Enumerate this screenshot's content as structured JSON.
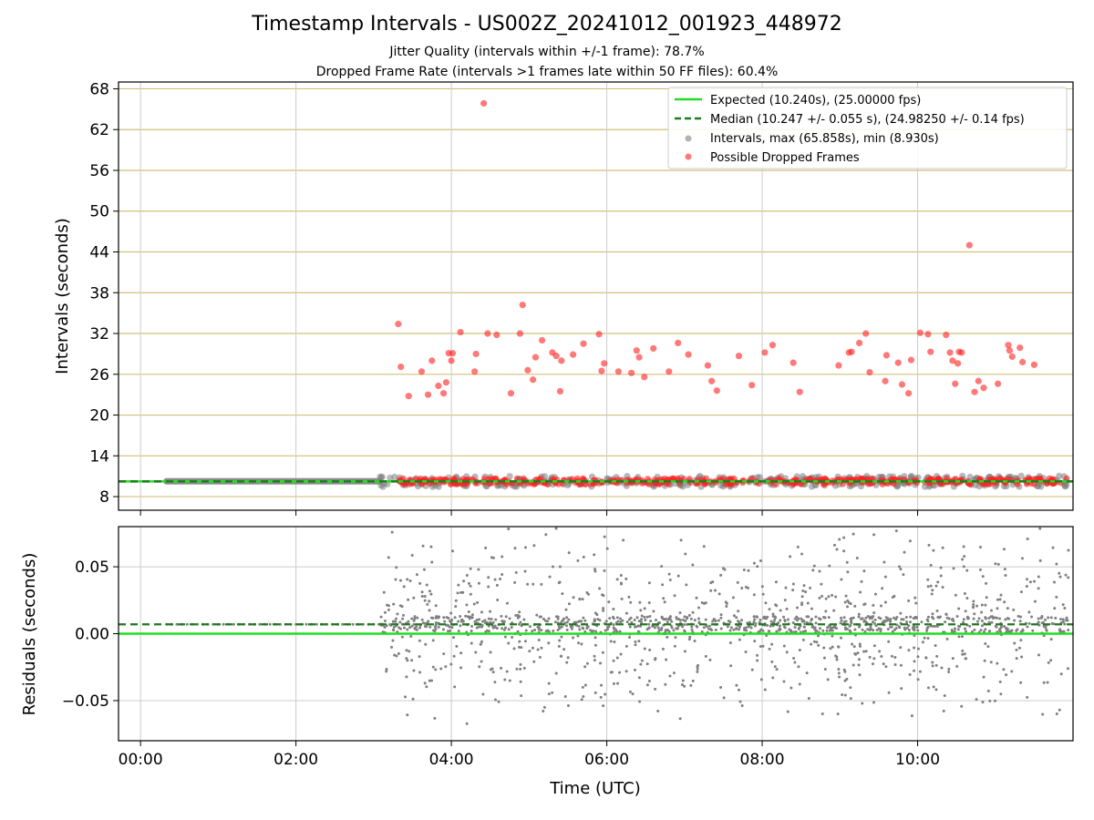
{
  "header": {
    "title": "Timestamp Intervals - US002Z_20241012_001923_448972",
    "subtitle_1": "Jitter Quality (intervals within +/-1 frame): 78.7%",
    "subtitle_2": "Dropped Frame Rate (intervals >1 frames late within 50 FF files): 60.4%"
  },
  "colors": {
    "expected": "#22dd22",
    "median": "#1f7a1f",
    "intervals": "#808080",
    "dropped": "#ff2020",
    "hgrid_top": "#d2c07a",
    "grid": "#cccccc"
  },
  "chart_data": [
    {
      "type": "scatter",
      "panel": "top",
      "ylabel": "Intervals (seconds)",
      "xlim": [
        "-00:17",
        "12:00"
      ],
      "ylim": [
        6,
        69
      ],
      "yticks": [
        "8",
        "14",
        "20",
        "26",
        "32",
        "38",
        "44",
        "50",
        "56",
        "62",
        "68"
      ],
      "horizontal_grid": true,
      "vertical_grid": true,
      "legend": {
        "placement": "top-right",
        "entries": [
          {
            "label": "Expected (10.240s), (25.00000 fps)",
            "kind": "line",
            "color": "#22dd22"
          },
          {
            "label": "Median (10.247 +/- 0.055 s), (24.98250 +/- 0.14 fps)",
            "kind": "dashed",
            "color": "#1f7a1f"
          },
          {
            "label": "Intervals, max (65.858s), min (8.930s)",
            "kind": "marker",
            "color": "#808080"
          },
          {
            "label": "Possible Dropped Frames",
            "kind": "marker",
            "color": "#ff2020"
          }
        ]
      },
      "lines": {
        "expected": 10.24,
        "median": 10.247
      },
      "intervals_band": {
        "x_start": "00:20",
        "x_end": "11:57",
        "y_center": 10.25
      },
      "dropped_frames": [
        {
          "x": "03:19",
          "y": 33.4
        },
        {
          "x": "03:21",
          "y": 27.1
        },
        {
          "x": "03:27",
          "y": 22.8
        },
        {
          "x": "03:37",
          "y": 26.4
        },
        {
          "x": "03:42",
          "y": 23.0
        },
        {
          "x": "03:45",
          "y": 28.0
        },
        {
          "x": "03:50",
          "y": 24.3
        },
        {
          "x": "03:54",
          "y": 23.2
        },
        {
          "x": "03:56",
          "y": 24.8
        },
        {
          "x": "03:58",
          "y": 29.1
        },
        {
          "x": "04:00",
          "y": 28.0
        },
        {
          "x": "04:01",
          "y": 29.1
        },
        {
          "x": "04:07",
          "y": 32.2
        },
        {
          "x": "04:18",
          "y": 26.4
        },
        {
          "x": "04:19",
          "y": 29.0
        },
        {
          "x": "04:25",
          "y": 65.86
        },
        {
          "x": "04:28",
          "y": 32.0
        },
        {
          "x": "04:35",
          "y": 31.8
        },
        {
          "x": "04:46",
          "y": 23.2
        },
        {
          "x": "04:53",
          "y": 32.0
        },
        {
          "x": "04:55",
          "y": 36.2
        },
        {
          "x": "04:59",
          "y": 26.6
        },
        {
          "x": "05:03",
          "y": 25.2
        },
        {
          "x": "05:05",
          "y": 28.5
        },
        {
          "x": "05:10",
          "y": 31.0
        },
        {
          "x": "05:18",
          "y": 29.2
        },
        {
          "x": "05:21",
          "y": 28.7
        },
        {
          "x": "05:24",
          "y": 23.5
        },
        {
          "x": "05:25",
          "y": 28.0
        },
        {
          "x": "05:34",
          "y": 28.9
        },
        {
          "x": "05:42",
          "y": 30.5
        },
        {
          "x": "05:54",
          "y": 31.9
        },
        {
          "x": "05:56",
          "y": 26.5
        },
        {
          "x": "05:58",
          "y": 27.6
        },
        {
          "x": "06:09",
          "y": 26.4
        },
        {
          "x": "06:19",
          "y": 26.2
        },
        {
          "x": "06:23",
          "y": 29.5
        },
        {
          "x": "06:25",
          "y": 28.5
        },
        {
          "x": "06:29",
          "y": 25.6
        },
        {
          "x": "06:36",
          "y": 29.8
        },
        {
          "x": "06:48",
          "y": 26.4
        },
        {
          "x": "06:55",
          "y": 30.6
        },
        {
          "x": "07:03",
          "y": 28.9
        },
        {
          "x": "07:18",
          "y": 27.3
        },
        {
          "x": "07:21",
          "y": 25.0
        },
        {
          "x": "07:25",
          "y": 23.6
        },
        {
          "x": "07:42",
          "y": 28.7
        },
        {
          "x": "07:52",
          "y": 24.4
        },
        {
          "x": "08:02",
          "y": 29.2
        },
        {
          "x": "08:08",
          "y": 30.3
        },
        {
          "x": "08:24",
          "y": 27.7
        },
        {
          "x": "08:29",
          "y": 23.4
        },
        {
          "x": "08:59",
          "y": 27.3
        },
        {
          "x": "09:07",
          "y": 29.2
        },
        {
          "x": "09:09",
          "y": 29.3
        },
        {
          "x": "09:15",
          "y": 30.6
        },
        {
          "x": "09:20",
          "y": 32.0
        },
        {
          "x": "09:23",
          "y": 26.3
        },
        {
          "x": "09:35",
          "y": 25.0
        },
        {
          "x": "09:36",
          "y": 28.8
        },
        {
          "x": "09:45",
          "y": 27.7
        },
        {
          "x": "09:48",
          "y": 24.5
        },
        {
          "x": "09:53",
          "y": 23.2
        },
        {
          "x": "09:55",
          "y": 28.1
        },
        {
          "x": "10:02",
          "y": 32.1
        },
        {
          "x": "10:08",
          "y": 31.9
        },
        {
          "x": "10:10",
          "y": 29.3
        },
        {
          "x": "10:22",
          "y": 31.8
        },
        {
          "x": "10:25",
          "y": 29.2
        },
        {
          "x": "10:27",
          "y": 28.0
        },
        {
          "x": "10:29",
          "y": 24.6
        },
        {
          "x": "10:31",
          "y": 27.6
        },
        {
          "x": "10:32",
          "y": 29.3
        },
        {
          "x": "10:34",
          "y": 29.2
        },
        {
          "x": "10:40",
          "y": 45.0
        },
        {
          "x": "10:44",
          "y": 23.4
        },
        {
          "x": "10:47",
          "y": 25.0
        },
        {
          "x": "10:51",
          "y": 24.0
        },
        {
          "x": "11:02",
          "y": 24.6
        },
        {
          "x": "11:10",
          "y": 30.3
        },
        {
          "x": "11:11",
          "y": 29.5
        },
        {
          "x": "11:13",
          "y": 28.6
        },
        {
          "x": "11:19",
          "y": 29.9
        },
        {
          "x": "11:21",
          "y": 27.8
        },
        {
          "x": "11:30",
          "y": 27.4
        }
      ]
    },
    {
      "type": "scatter",
      "panel": "bottom",
      "xlabel": "Time (UTC)",
      "ylabel": "Residuals (seconds)",
      "xlim": [
        "-00:17",
        "12:00"
      ],
      "ylim": [
        -0.08,
        0.08
      ],
      "yticks": [
        "0.05",
        "0.00",
        "−0.05"
      ],
      "xticks": [
        "00:00",
        "02:00",
        "04:00",
        "06:00",
        "08:00",
        "10:00"
      ],
      "horizontal_grid": true,
      "vertical_grid": true,
      "lines": {
        "expected": 0.0,
        "median": 0.007
      },
      "residual_points": {
        "x_start": "00:20",
        "x_dense_start": "03:05",
        "x_end": "11:57",
        "center": 0.007,
        "spread": 0.08
      }
    }
  ]
}
